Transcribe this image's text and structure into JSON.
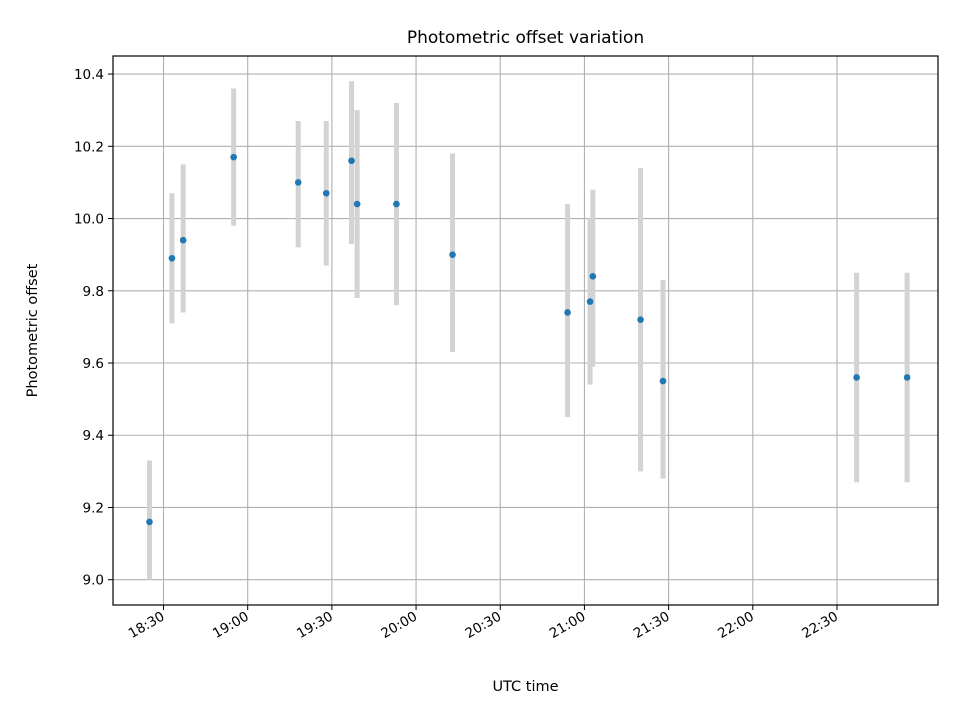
{
  "chart_data": {
    "type": "scatter",
    "title": "Photometric offset variation",
    "xlabel": "UTC time",
    "ylabel": "Photometric offset",
    "grid": true,
    "xlim": [
      "18:12",
      "23:06"
    ],
    "ylim": [
      8.93,
      10.45
    ],
    "x_ticks": [
      "18:30",
      "19:00",
      "19:30",
      "20:00",
      "20:30",
      "21:00",
      "21:30",
      "22:00",
      "22:30"
    ],
    "y_ticks": [
      "9.0",
      "9.2",
      "9.4",
      "9.6",
      "9.8",
      "10.0",
      "10.2",
      "10.4"
    ],
    "colors": {
      "points": "#1f77b4",
      "error_bars": "#d3d3d3",
      "grid": "#b0b0b0"
    },
    "points": [
      {
        "x": "18:25",
        "y": 9.16,
        "err": [
          9.0,
          9.33
        ]
      },
      {
        "x": "18:33",
        "y": 9.89,
        "err": [
          9.71,
          10.07
        ]
      },
      {
        "x": "18:37",
        "y": 9.94,
        "err": [
          9.74,
          10.15
        ]
      },
      {
        "x": "18:55",
        "y": 10.17,
        "err": [
          9.98,
          10.36
        ]
      },
      {
        "x": "19:18",
        "y": 10.1,
        "err": [
          9.92,
          10.27
        ]
      },
      {
        "x": "19:28",
        "y": 10.07,
        "err": [
          9.87,
          10.27
        ]
      },
      {
        "x": "19:37",
        "y": 10.16,
        "err": [
          9.93,
          10.38
        ]
      },
      {
        "x": "19:39",
        "y": 10.04,
        "err": [
          9.78,
          10.3
        ]
      },
      {
        "x": "19:53",
        "y": 10.04,
        "err": [
          9.76,
          10.32
        ]
      },
      {
        "x": "20:13",
        "y": 9.9,
        "err": [
          9.63,
          10.18
        ]
      },
      {
        "x": "20:54",
        "y": 9.74,
        "err": [
          9.45,
          10.04
        ]
      },
      {
        "x": "21:02",
        "y": 9.77,
        "err": [
          9.54,
          10.0
        ]
      },
      {
        "x": "21:03",
        "y": 9.84,
        "err": [
          9.59,
          10.08
        ]
      },
      {
        "x": "21:20",
        "y": 9.72,
        "err": [
          9.3,
          10.14
        ]
      },
      {
        "x": "21:28",
        "y": 9.55,
        "err": [
          9.28,
          9.83
        ]
      },
      {
        "x": "22:37",
        "y": 9.56,
        "err": [
          9.27,
          9.85
        ]
      },
      {
        "x": "22:55",
        "y": 9.56,
        "err": [
          9.27,
          9.85
        ]
      }
    ]
  }
}
